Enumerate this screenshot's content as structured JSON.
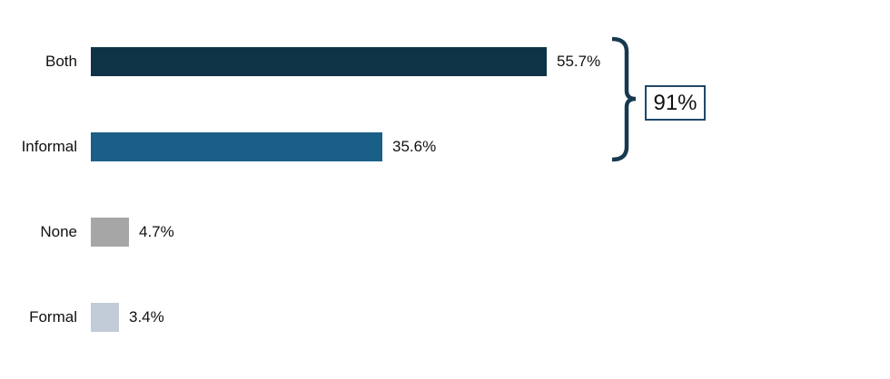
{
  "chart_data": {
    "type": "bar",
    "orientation": "horizontal",
    "title": "",
    "xlabel": "",
    "ylabel": "",
    "xlim": [
      0,
      100
    ],
    "grid": false,
    "legend": false,
    "categories": [
      "Both",
      "Informal",
      "None",
      "Formal"
    ],
    "values": [
      55.7,
      35.6,
      4.7,
      3.4
    ],
    "value_labels": [
      "55.7%",
      "35.6%",
      "4.7%",
      "3.4%"
    ],
    "colors": [
      "#0E3347",
      "#1A5F87",
      "#A6A6A6",
      "#C1CCD8"
    ]
  },
  "annotation": {
    "value": "91%",
    "grouped_categories": [
      "Both",
      "Informal"
    ],
    "bracket_color": "#17394F",
    "box_border_color": "#1F4769"
  }
}
